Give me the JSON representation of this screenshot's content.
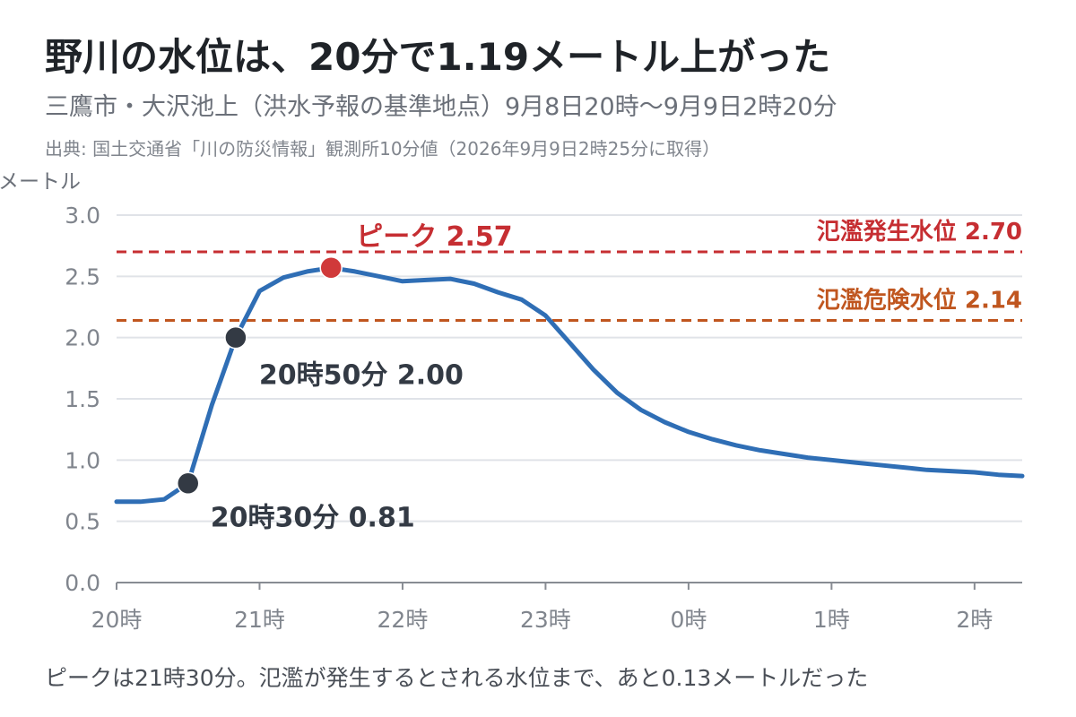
{
  "title": "野川の水位は、20分で1.19メートル上がった",
  "subtitle": "三鷹市・大沢池上（洪水予報の基準地点）9月8日20時〜9月9日2時20分",
  "source": "出典: 国土交通省「川の防災情報」観測所10分値（2026年9月9日2時25分に取得）",
  "footer": "ピークは21時30分。氾濫が発生するとされる水位まで、あと0.13メートルだった",
  "colors": {
    "line": "#2f6eb5",
    "flood": "#c62e32",
    "danger": "#c0561f",
    "marker": "#333a44",
    "peak": "#d0393a",
    "grid": "#e0e3e8",
    "axis": "#80858d"
  },
  "chart_data": {
    "type": "line",
    "ylabel": "メートル",
    "ylim": [
      0,
      3.0
    ],
    "yticks": [
      0.0,
      0.5,
      1.0,
      1.5,
      2.0,
      2.5,
      3.0
    ],
    "ytick_labels": [
      "0.0",
      "0.5",
      "1.0",
      "1.5",
      "2.0",
      "2.5",
      "3.0"
    ],
    "xlim": [
      "20:00",
      "02:20"
    ],
    "xticks": [
      "20:00",
      "21:00",
      "22:00",
      "23:00",
      "00:00",
      "01:00",
      "02:00"
    ],
    "xtick_labels": [
      "20時",
      "21時",
      "22時",
      "23時",
      "0時",
      "1時",
      "2時"
    ],
    "grid": true,
    "series": [
      {
        "x": [
          "20:00",
          "20:10",
          "20:20",
          "20:30",
          "20:40",
          "20:50",
          "21:00",
          "21:10",
          "21:20",
          "21:30",
          "21:40",
          "21:50",
          "22:00",
          "22:10",
          "22:20",
          "22:30",
          "22:40",
          "22:50",
          "23:00",
          "23:10",
          "23:20",
          "23:30",
          "23:40",
          "23:50",
          "00:00",
          "00:10",
          "00:20",
          "00:30",
          "00:40",
          "00:50",
          "01:00",
          "01:10",
          "01:20",
          "01:30",
          "01:40",
          "01:50",
          "02:00",
          "02:10",
          "02:20"
        ],
        "y": [
          0.66,
          0.66,
          0.68,
          0.81,
          1.45,
          2.0,
          2.38,
          2.49,
          2.54,
          2.57,
          2.54,
          2.5,
          2.46,
          2.47,
          2.48,
          2.44,
          2.37,
          2.31,
          2.18,
          1.96,
          1.74,
          1.55,
          1.41,
          1.31,
          1.23,
          1.17,
          1.12,
          1.08,
          1.05,
          1.02,
          1.0,
          0.98,
          0.96,
          0.94,
          0.92,
          0.91,
          0.9,
          0.88,
          0.87
        ]
      }
    ],
    "reference_lines": [
      {
        "label": "氾濫発生水位 2.70",
        "value": 2.7,
        "color": "#c62e32"
      },
      {
        "label": "氾濫危険水位 2.14",
        "value": 2.14,
        "color": "#c0561f"
      }
    ],
    "annotations": [
      {
        "label": "ピーク 2.57",
        "x": "21:30",
        "y": 2.57,
        "type": "peak"
      },
      {
        "label": "20時50分 2.00",
        "x": "20:50",
        "y": 2.0,
        "type": "marker"
      },
      {
        "label": "20時30分 0.81",
        "x": "20:30",
        "y": 0.81,
        "type": "marker"
      }
    ]
  }
}
